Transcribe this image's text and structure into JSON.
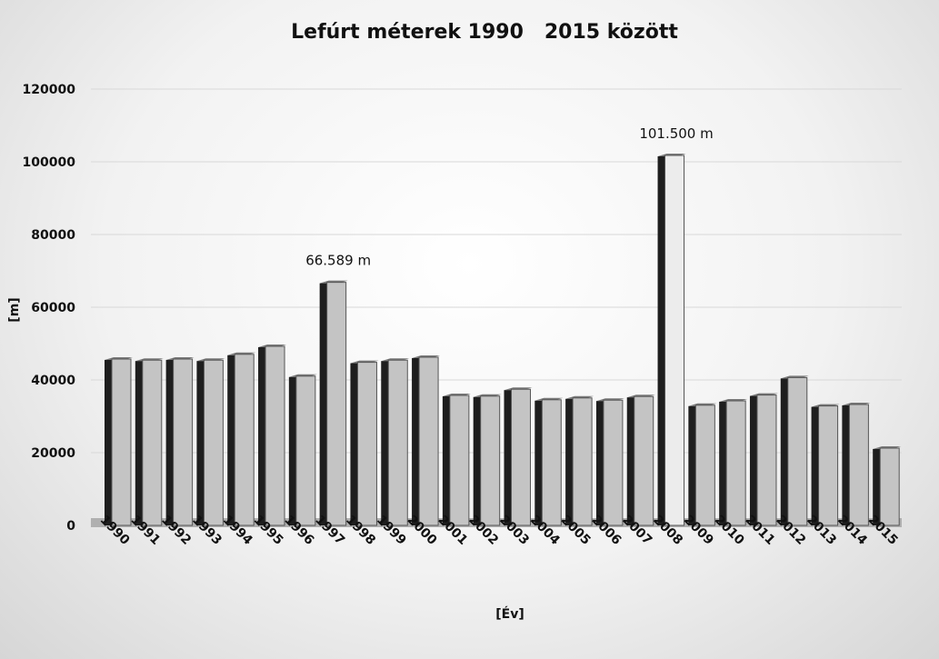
{
  "chart_data": {
    "type": "bar",
    "title": "Lefúrt méterek 1990   2015 között",
    "xlabel": "[Év]",
    "ylabel": "[m]",
    "ylim": [
      0,
      120000
    ],
    "yticks": [
      0,
      20000,
      40000,
      60000,
      80000,
      100000,
      120000
    ],
    "grid": true,
    "categories": [
      "1990",
      "1991",
      "1992",
      "1993",
      "1994",
      "1995",
      "1996",
      "1997",
      "1998",
      "1999",
      "2000",
      "2001",
      "2002",
      "2003",
      "2004",
      "2005",
      "2006",
      "2007",
      "2008",
      "2009",
      "2010",
      "2011",
      "2012",
      "2013",
      "2014",
      "2015"
    ],
    "values": [
      45500,
      45200,
      45500,
      45200,
      46800,
      49000,
      40800,
      66589,
      44600,
      45200,
      46000,
      35500,
      35300,
      37200,
      34300,
      34800,
      34200,
      35200,
      101500,
      32800,
      34000,
      35600,
      40400,
      32600,
      33000,
      21000
    ],
    "annotations": [
      {
        "category": "1997",
        "text": "66.589 m"
      },
      {
        "category": "2008",
        "text": "101.500 m"
      }
    ],
    "colors": {
      "face": "#c4c4c4",
      "light_face": "#ececec",
      "side": "#1e1e1e",
      "top": "#7a7a7a"
    }
  }
}
